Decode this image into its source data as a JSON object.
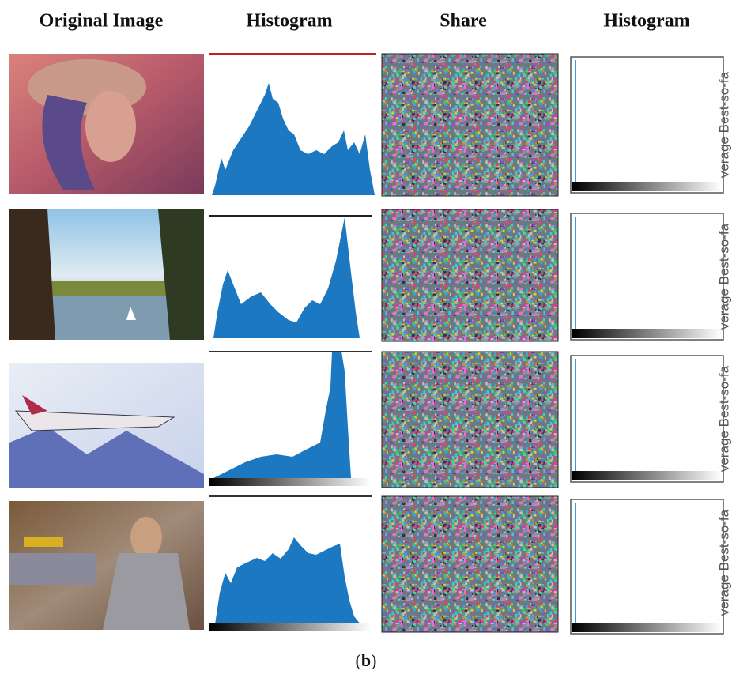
{
  "headers": [
    "Original Image",
    "Histogram",
    "Share",
    "Histogram"
  ],
  "side_labels": [
    "verage Best-so-fa",
    "verage Best-so-fa",
    "verage Best-so-fa",
    "verage Best-so-fa"
  ],
  "caption": [
    "(",
    "b",
    ")"
  ]
}
